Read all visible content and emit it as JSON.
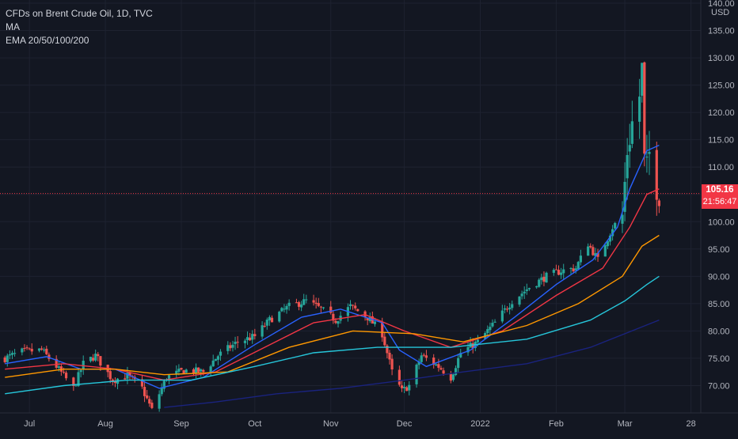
{
  "legend": {
    "symbol": "CFDs on Brent Crude Oil, 1D, TVC",
    "ma": "MA",
    "ema": "EMA 20/50/100/200"
  },
  "last_price": {
    "value": "105.16",
    "countdown": "21:56:47"
  },
  "colors": {
    "background": "#131722",
    "up": "#26a69a",
    "down": "#ef5350",
    "ema20": "#2962ff",
    "ema50": "#f23645",
    "ema100": "#ff9800",
    "ema200": "#26c6da",
    "ma": "#1a237e",
    "price_line": "#f23645"
  },
  "chart_data": {
    "type": "candlestick",
    "currency_label": "USD",
    "y_ticks": [
      "70.00",
      "75.00",
      "80.00",
      "85.00",
      "90.00",
      "95.00",
      "100.00",
      "105.00",
      "110.00",
      "115.00",
      "120.00",
      "125.00",
      "130.00",
      "135.00",
      "140.00"
    ],
    "x_ticks": [
      {
        "label": "Jul",
        "date": "2021-07-01"
      },
      {
        "label": "Aug",
        "date": "2021-08-01"
      },
      {
        "label": "Sep",
        "date": "2021-09-01"
      },
      {
        "label": "Oct",
        "date": "2021-10-01"
      },
      {
        "label": "Nov",
        "date": "2021-11-01"
      },
      {
        "label": "Dec",
        "date": "2021-12-01"
      },
      {
        "label": "2022",
        "date": "2022-01-01"
      },
      {
        "label": "Feb",
        "date": "2022-02-01"
      },
      {
        "label": "Mar",
        "date": "2022-03-01"
      },
      {
        "label": "28",
        "date": "2022-03-28"
      }
    ],
    "ylim": [
      65,
      140
    ],
    "xlim": [
      "2021-06-19",
      "2022-04-01"
    ],
    "close_path": [
      [
        "2021-06-21",
        75.0
      ],
      [
        "2021-06-28",
        76.2
      ],
      [
        "2021-07-06",
        76.5
      ],
      [
        "2021-07-12",
        73.5
      ],
      [
        "2021-07-19",
        69.5
      ],
      [
        "2021-07-23",
        74.0
      ],
      [
        "2021-07-28",
        75.5
      ],
      [
        "2021-08-04",
        71.0
      ],
      [
        "2021-08-10",
        71.8
      ],
      [
        "2021-08-16",
        69.5
      ],
      [
        "2021-08-20",
        65.5
      ],
      [
        "2021-08-26",
        71.5
      ],
      [
        "2021-09-02",
        72.8
      ],
      [
        "2021-09-10",
        72.5
      ],
      [
        "2021-09-16",
        75.5
      ],
      [
        "2021-09-24",
        78.0
      ],
      [
        "2021-10-01",
        79.0
      ],
      [
        "2021-10-07",
        82.0
      ],
      [
        "2021-10-15",
        84.5
      ],
      [
        "2021-10-22",
        85.5
      ],
      [
        "2021-10-28",
        84.0
      ],
      [
        "2021-11-03",
        82.0
      ],
      [
        "2021-11-09",
        84.5
      ],
      [
        "2021-11-16",
        82.5
      ],
      [
        "2021-11-22",
        79.5
      ],
      [
        "2021-11-26",
        72.5
      ],
      [
        "2021-11-30",
        69.0
      ],
      [
        "2021-12-03",
        70.0
      ],
      [
        "2021-12-08",
        75.5
      ],
      [
        "2021-12-15",
        73.5
      ],
      [
        "2021-12-20",
        71.5
      ],
      [
        "2021-12-24",
        76.0
      ],
      [
        "2021-12-31",
        78.0
      ],
      [
        "2022-01-07",
        81.5
      ],
      [
        "2022-01-14",
        85.5
      ],
      [
        "2022-01-21",
        88.0
      ],
      [
        "2022-01-28",
        90.0
      ],
      [
        "2022-02-03",
        91.0
      ],
      [
        "2022-02-09",
        91.5
      ],
      [
        "2022-02-14",
        96.0
      ],
      [
        "2022-02-18",
        93.0
      ],
      [
        "2022-02-24",
        99.0
      ],
      [
        "2022-02-28",
        101.0
      ],
      [
        "2022-03-02",
        113.0
      ],
      [
        "2022-03-04",
        118.0
      ],
      [
        "2022-03-07",
        123.0
      ],
      [
        "2022-03-08",
        128.0
      ],
      [
        "2022-03-09",
        111.0
      ],
      [
        "2022-03-10",
        109.5
      ],
      [
        "2022-03-11",
        112.5
      ],
      [
        "2022-03-14",
        106.5
      ],
      [
        "2022-03-15",
        105.16
      ]
    ],
    "series": [
      {
        "name": "EMA 20",
        "points": [
          [
            "2021-06-21",
            74.0
          ],
          [
            "2021-07-08",
            75.3
          ],
          [
            "2021-07-22",
            73.0
          ],
          [
            "2021-08-05",
            73.0
          ],
          [
            "2021-08-23",
            69.5
          ],
          [
            "2021-09-10",
            71.5
          ],
          [
            "2021-10-01",
            77.5
          ],
          [
            "2021-10-20",
            82.5
          ],
          [
            "2021-11-05",
            84.0
          ],
          [
            "2021-11-22",
            81.5
          ],
          [
            "2021-11-29",
            76.5
          ],
          [
            "2021-12-10",
            73.5
          ],
          [
            "2021-12-28",
            76.5
          ],
          [
            "2022-01-15",
            82.5
          ],
          [
            "2022-02-01",
            88.5
          ],
          [
            "2022-02-16",
            93.0
          ],
          [
            "2022-02-26",
            99.0
          ],
          [
            "2022-03-03",
            106.0
          ],
          [
            "2022-03-10",
            113.0
          ],
          [
            "2022-03-15",
            114.0
          ]
        ]
      },
      {
        "name": "EMA 50",
        "points": [
          [
            "2021-06-21",
            73.0
          ],
          [
            "2021-07-15",
            74.0
          ],
          [
            "2021-08-05",
            73.0
          ],
          [
            "2021-08-25",
            71.0
          ],
          [
            "2021-09-15",
            72.5
          ],
          [
            "2021-10-05",
            77.0
          ],
          [
            "2021-10-25",
            81.5
          ],
          [
            "2021-11-15",
            83.0
          ],
          [
            "2021-12-01",
            80.0
          ],
          [
            "2021-12-20",
            77.0
          ],
          [
            "2022-01-10",
            80.0
          ],
          [
            "2022-02-01",
            86.5
          ],
          [
            "2022-02-20",
            91.5
          ],
          [
            "2022-03-03",
            99.0
          ],
          [
            "2022-03-10",
            105.0
          ],
          [
            "2022-03-15",
            106.0
          ]
        ]
      },
      {
        "name": "EMA 100",
        "points": [
          [
            "2021-06-21",
            71.5
          ],
          [
            "2021-07-15",
            73.0
          ],
          [
            "2021-08-05",
            73.0
          ],
          [
            "2021-08-25",
            72.0
          ],
          [
            "2021-09-20",
            72.5
          ],
          [
            "2021-10-15",
            77.0
          ],
          [
            "2021-11-10",
            80.0
          ],
          [
            "2021-12-05",
            79.5
          ],
          [
            "2021-12-25",
            78.0
          ],
          [
            "2022-01-20",
            81.0
          ],
          [
            "2022-02-10",
            85.0
          ],
          [
            "2022-02-28",
            90.0
          ],
          [
            "2022-03-08",
            95.5
          ],
          [
            "2022-03-15",
            97.5
          ]
        ]
      },
      {
        "name": "EMA 200",
        "points": [
          [
            "2021-06-21",
            68.5
          ],
          [
            "2021-07-15",
            70.0
          ],
          [
            "2021-08-10",
            71.0
          ],
          [
            "2021-09-05",
            71.0
          ],
          [
            "2021-10-01",
            73.5
          ],
          [
            "2021-10-25",
            76.0
          ],
          [
            "2021-11-20",
            77.0
          ],
          [
            "2021-12-20",
            77.0
          ],
          [
            "2022-01-20",
            78.5
          ],
          [
            "2022-02-15",
            82.0
          ],
          [
            "2022-03-01",
            85.5
          ],
          [
            "2022-03-10",
            88.5
          ],
          [
            "2022-03-15",
            90.0
          ]
        ]
      },
      {
        "name": "MA",
        "points": [
          [
            "2021-08-25",
            66.0
          ],
          [
            "2021-09-15",
            67.0
          ],
          [
            "2021-10-10",
            68.5
          ],
          [
            "2021-11-05",
            69.5
          ],
          [
            "2021-12-01",
            71.0
          ],
          [
            "2021-12-25",
            72.5
          ],
          [
            "2022-01-20",
            74.0
          ],
          [
            "2022-02-15",
            77.0
          ],
          [
            "2022-03-01",
            79.5
          ],
          [
            "2022-03-15",
            82.0
          ]
        ]
      }
    ]
  }
}
